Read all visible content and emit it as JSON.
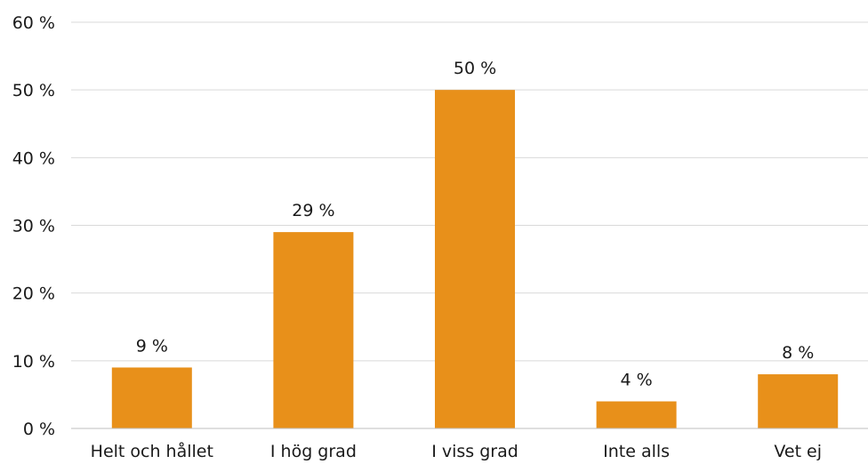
{
  "chart_data": {
    "type": "bar",
    "categories": [
      "Helt och hållet",
      "I hög grad",
      "I viss grad",
      "Inte alls",
      "Vet ej"
    ],
    "values": [
      9,
      29,
      50,
      4,
      8
    ],
    "data_labels": [
      "9 %",
      "29 %",
      "50 %",
      "4 %",
      "8 %"
    ],
    "yticks": [
      0,
      10,
      20,
      30,
      40,
      50,
      60
    ],
    "ytick_labels": [
      "0 %",
      "10 %",
      "20 %",
      "30 %",
      "40 %",
      "50 %",
      "60 %"
    ],
    "ylim": [
      0,
      60
    ],
    "grid": true,
    "bar_color": "#E8901A"
  }
}
